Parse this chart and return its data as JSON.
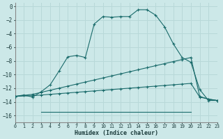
{
  "bg_color": "#cce8e8",
  "grid_color": "#b8d8d8",
  "line_color": "#1a6b6b",
  "xlabel": "Humidex (Indice chaleur)",
  "xlim": [
    0,
    23
  ],
  "ylim": [
    -17,
    0.5
  ],
  "yticks": [
    0,
    -2,
    -4,
    -6,
    -8,
    -10,
    -12,
    -14,
    -16
  ],
  "xticks": [
    0,
    1,
    2,
    3,
    4,
    5,
    6,
    7,
    8,
    9,
    10,
    11,
    12,
    13,
    14,
    15,
    16,
    17,
    18,
    19,
    20,
    21,
    22,
    23
  ],
  "curve1_x": [
    0,
    1,
    2,
    3,
    4,
    5,
    6,
    7,
    8,
    9,
    10,
    11,
    12,
    13,
    14,
    15,
    16,
    17,
    18,
    19,
    20,
    21,
    22,
    23
  ],
  "curve1_y": [
    -13.2,
    -13.0,
    -13.3,
    -12.5,
    -11.5,
    -9.5,
    -7.4,
    -7.2,
    -7.5,
    -2.6,
    -1.5,
    -1.6,
    -1.5,
    -1.5,
    -0.5,
    -0.5,
    -1.3,
    -3.0,
    -5.5,
    -7.5,
    -8.2,
    -12.2,
    -13.8,
    -13.8
  ],
  "curve2_x": [
    0,
    2,
    3,
    4,
    5,
    6,
    7,
    8,
    9,
    10,
    11,
    12,
    13,
    14,
    15,
    16,
    17,
    18,
    19,
    20,
    21,
    22,
    23
  ],
  "curve2_y": [
    -13.2,
    -12.9,
    -12.6,
    -12.3,
    -12.0,
    -11.7,
    -11.4,
    -11.1,
    -10.8,
    -10.5,
    -10.2,
    -9.9,
    -9.6,
    -9.3,
    -9.0,
    -8.7,
    -8.4,
    -8.1,
    -7.8,
    -7.5,
    -13.2,
    -13.6,
    -13.8
  ],
  "curve3_x": [
    0,
    2,
    3,
    4,
    5,
    6,
    7,
    8,
    9,
    10,
    11,
    12,
    13,
    14,
    15,
    16,
    17,
    18,
    19,
    20,
    21,
    22,
    23
  ],
  "curve3_y": [
    -13.2,
    -13.1,
    -13.0,
    -12.9,
    -12.8,
    -12.7,
    -12.6,
    -12.5,
    -12.4,
    -12.3,
    -12.2,
    -12.1,
    -12.0,
    -11.9,
    -11.8,
    -11.7,
    -11.6,
    -11.5,
    -11.4,
    -11.3,
    -13.3,
    -13.6,
    -13.8
  ],
  "curve4_x": [
    3,
    4,
    5,
    6,
    7,
    8,
    9,
    10,
    11,
    12,
    13,
    14,
    15,
    16,
    17,
    18,
    19,
    20
  ],
  "curve4_y": [
    -15.5,
    -15.5,
    -15.5,
    -15.5,
    -15.5,
    -15.5,
    -15.5,
    -15.5,
    -15.5,
    -15.5,
    -15.5,
    -15.5,
    -15.5,
    -15.5,
    -15.5,
    -15.5,
    -15.5,
    -15.5
  ]
}
